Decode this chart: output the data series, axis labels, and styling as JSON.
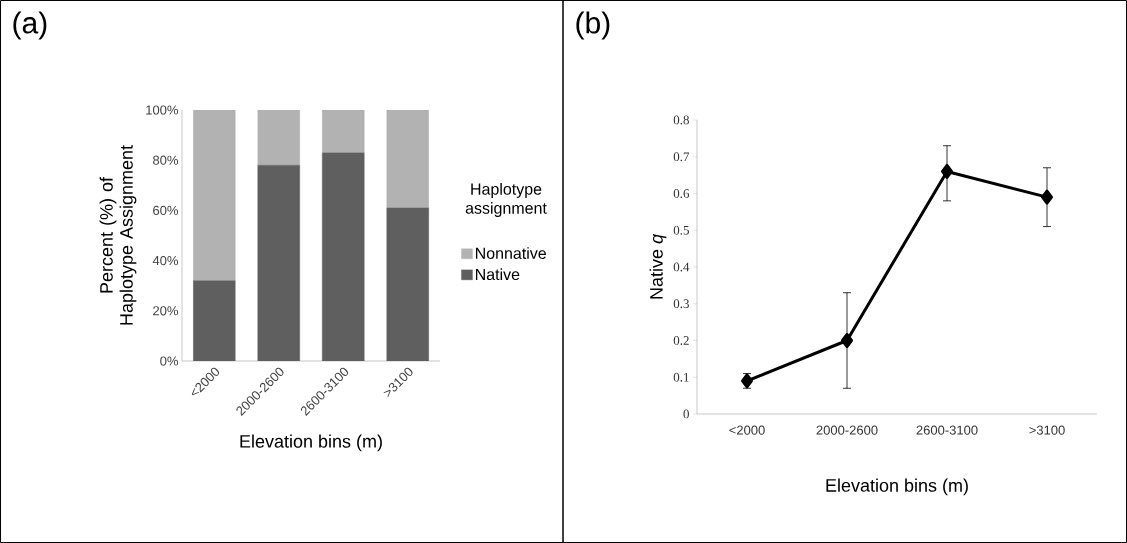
{
  "chart_data": [
    {
      "type": "bar",
      "title": "(a)",
      "xlabel": "Elevation bins (m)",
      "ylabel": "Percent (%) of Haplotype Assignment",
      "legend_title": "Haplotype assignment",
      "stacked": true,
      "legend": "right",
      "categories": [
        "<2000",
        "2000-2600",
        "2600-3100",
        ">3100"
      ],
      "series": [
        {
          "name": "Native",
          "color": "#5f5f5f",
          "values": [
            32,
            78,
            83,
            61
          ]
        },
        {
          "name": "Nonnative",
          "color": "#b2b2b2",
          "values": [
            68,
            22,
            17,
            39
          ]
        }
      ],
      "ylim": [
        0,
        100
      ],
      "yticks": [
        {
          "value": 0,
          "label": "0%"
        },
        {
          "value": 20,
          "label": "20%"
        },
        {
          "value": 40,
          "label": "40%"
        },
        {
          "value": 60,
          "label": "60%"
        },
        {
          "value": 80,
          "label": "80%"
        },
        {
          "value": 100,
          "label": "100%"
        }
      ]
    },
    {
      "type": "line",
      "title": "(b)",
      "xlabel": "Elevation bins (m)",
      "ylabel": "Native *q*",
      "marker": "diamond",
      "line_style": "solid",
      "categories": [
        "<2000",
        "2000-2600",
        "2600-3100",
        ">3100"
      ],
      "series": [
        {
          "color": "#000000",
          "values": [
            0.09,
            0.2,
            0.66,
            0.59
          ],
          "errors": [
            [
              0.07,
              0.11
            ],
            [
              0.07,
              0.33
            ],
            [
              0.58,
              0.73
            ],
            [
              0.51,
              0.67
            ]
          ]
        }
      ],
      "ylim": [
        0,
        0.8
      ],
      "yticks": [
        0,
        0.1,
        0.2,
        0.3,
        0.4,
        0.5,
        0.6,
        0.7,
        0.8
      ]
    }
  ]
}
